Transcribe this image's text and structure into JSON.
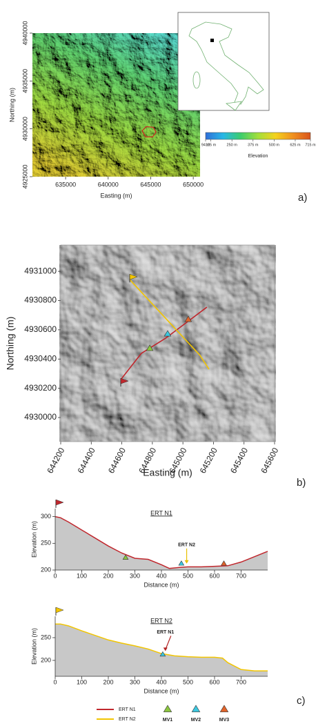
{
  "chart_data": [
    {
      "type": "map",
      "xlabel": "Easting (m)",
      "ylabel": "Northing (m)",
      "xlim": [
        631100,
        650800
      ],
      "xticks": [
        635000,
        640000,
        645000,
        650000
      ],
      "ylim": [
        4925000,
        4940000
      ],
      "yticks": [
        4925000,
        4930000,
        4935000,
        4940000
      ],
      "colorbar": {
        "title": "Elevation",
        "lim": [
          94,
          715
        ],
        "ticks": [
          {
            "value": 94,
            "label": "94 m"
          },
          {
            "value": 125,
            "label": "125 m"
          },
          {
            "value": 250,
            "label": "250 m"
          },
          {
            "value": 375,
            "label": "375 m"
          },
          {
            "value": 500,
            "label": "500 m"
          },
          {
            "value": 625,
            "label": "625 m"
          },
          {
            "value": 715,
            "label": "715 m"
          }
        ],
        "colors": [
          "#2f6fd8",
          "#27b7e6",
          "#3ccd6e",
          "#a3df3a",
          "#f4d21e",
          "#f0901f",
          "#d9541c"
        ]
      }
    },
    {
      "type": "map",
      "xlabel": "Easting (m)",
      "ylabel": "Northing (m)",
      "xlim": [
        644200,
        645600
      ],
      "xticks": [
        644200,
        644400,
        644600,
        644800,
        645000,
        645200,
        645400,
        645600
      ],
      "ylim": [
        4929835,
        4931180
      ],
      "yticks": [
        4930000,
        4930200,
        4930400,
        4930600,
        4930800,
        4931000
      ],
      "series": [
        {
          "name": "ERT N1",
          "color": "#c0272d",
          "x": [
            644593,
            644728,
            644886,
            645157
          ],
          "values": [
            4930259,
            4930439,
            4930542,
            4930755
          ]
        },
        {
          "name": "ERT N2",
          "color": "#f2c500",
          "x": [
            644652,
            645112,
            645171
          ],
          "values": [
            4930943,
            4930425,
            4930330
          ]
        }
      ],
      "points": [
        {
          "name": "MV1",
          "color": "#8cc63f",
          "x": 644783,
          "y": 4930472
        },
        {
          "name": "MV2",
          "color": "#3cc8e0",
          "x": 644900,
          "y": 4930571
        },
        {
          "name": "MV3",
          "color": "#e2642a",
          "x": 645035,
          "y": 4930670
        }
      ]
    },
    {
      "type": "profile",
      "title": "ERT N1",
      "xlabel": "Distance (m)",
      "ylabel": "Elevation (m)",
      "xlim": [
        0,
        800
      ],
      "xticks": [
        0,
        100,
        200,
        300,
        400,
        500,
        600,
        700
      ],
      "ylim": [
        200,
        315
      ],
      "yticks": [
        200,
        250,
        300
      ],
      "x": [
        0,
        20,
        50,
        100,
        150,
        200,
        250,
        300,
        350,
        400,
        430,
        470,
        500,
        550,
        600,
        650,
        700,
        750,
        800
      ],
      "values": [
        300,
        298,
        290,
        275,
        260,
        245,
        232,
        222,
        220,
        210,
        203,
        205,
        206,
        206,
        207,
        208,
        215,
        225,
        235
      ],
      "color": "#c0272d",
      "fill": "#c8c8c8",
      "points": [
        {
          "x": 265,
          "y": 223,
          "color": "#8cc63f"
        },
        {
          "x": 475,
          "y": 212,
          "color": "#3cc8e0"
        },
        {
          "x": 635,
          "y": 212,
          "color": "#e2642a"
        }
      ],
      "annotation": {
        "text": "ERT N2",
        "x": 495,
        "y": 208,
        "color": "#e8c000"
      }
    },
    {
      "type": "profile",
      "title": "ERT N2",
      "xlabel": "Distance (m)",
      "ylabel": "Elevation (m)",
      "xlim": [
        0,
        800
      ],
      "xticks": [
        0,
        100,
        200,
        300,
        400,
        500,
        600,
        700
      ],
      "ylim": [
        165,
        297
      ],
      "yticks": [
        200,
        250
      ],
      "x": [
        0,
        20,
        50,
        100,
        150,
        200,
        250,
        300,
        350,
        400,
        450,
        500,
        550,
        600,
        630,
        650,
        700,
        750,
        800
      ],
      "values": [
        280,
        280,
        276,
        265,
        255,
        245,
        238,
        232,
        225,
        215,
        210,
        208,
        207,
        207,
        205,
        195,
        180,
        177,
        177
      ],
      "color": "#f2c500",
      "fill": "#c8c8c8",
      "points": [
        {
          "x": 405,
          "y": 213,
          "color": "#3cc8e0"
        }
      ],
      "annotation": {
        "text": "ERT N1",
        "x": 415,
        "y": 216,
        "color": "#b22222"
      }
    }
  ],
  "panel_labels": [
    "a)",
    "b)",
    "c)"
  ]
}
